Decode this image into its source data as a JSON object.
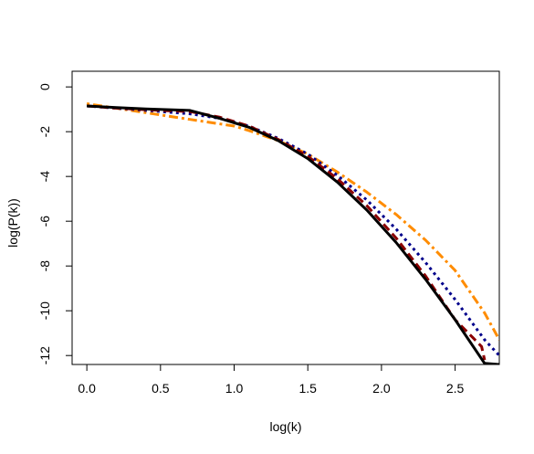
{
  "chart_data": {
    "type": "line",
    "title": "",
    "xlabel": "log(k)",
    "ylabel": "log(P(k))",
    "xlim": [
      -0.1,
      2.8
    ],
    "ylim": [
      -12.4,
      0.7
    ],
    "xticks": [
      "0.0",
      "0.5",
      "1.0",
      "1.5",
      "2.0",
      "2.5"
    ],
    "xtick_values": [
      0,
      0.5,
      1,
      1.5,
      2,
      2.5
    ],
    "yticks": [
      "0",
      "-2",
      "-4",
      "-6",
      "-8",
      "-10",
      "-12"
    ],
    "ytick_values": [
      0,
      -2,
      -4,
      -6,
      -8,
      -10,
      -12
    ],
    "grid": false,
    "legend": null,
    "series": [
      {
        "color": "#FF8C00",
        "style": "dotdash",
        "x": [
          0,
          0.1,
          0.3,
          0.5,
          0.7,
          0.8,
          1.0,
          1.1,
          1.3,
          1.5,
          1.7,
          1.9,
          2.1,
          2.3,
          2.5,
          2.7,
          2.8
        ],
        "y": [
          -0.75,
          -0.85,
          -1.05,
          -1.25,
          -1.45,
          -1.55,
          -1.75,
          -1.95,
          -2.4,
          -3.0,
          -3.8,
          -4.7,
          -5.7,
          -6.85,
          -8.2,
          -10.1,
          -11.3
        ]
      },
      {
        "color": "#00008B",
        "style": "dotted",
        "x": [
          0,
          0.2,
          0.5,
          0.7,
          0.9,
          1.1,
          1.3,
          1.5,
          1.7,
          1.9,
          2.1,
          2.3,
          2.5,
          2.7,
          2.8
        ],
        "y": [
          -0.85,
          -0.95,
          -1.1,
          -1.2,
          -1.4,
          -1.75,
          -2.3,
          -3.0,
          -3.95,
          -5.05,
          -6.35,
          -7.85,
          -9.5,
          -11.3,
          -12.0
        ]
      },
      {
        "color": "#8B0000",
        "style": "dashed",
        "x": [
          0,
          0.2,
          0.5,
          0.7,
          0.9,
          1.1,
          1.3,
          1.5,
          1.7,
          1.9,
          2.1,
          2.3,
          2.5,
          2.62,
          2.68,
          2.7
        ],
        "y": [
          -0.85,
          -0.95,
          -1.05,
          -1.1,
          -1.35,
          -1.75,
          -2.35,
          -3.1,
          -4.1,
          -5.3,
          -6.75,
          -8.45,
          -10.4,
          -11.2,
          -11.6,
          -12.2
        ]
      },
      {
        "color": "#000000",
        "style": "solid",
        "x": [
          0,
          0.2,
          0.4,
          0.7,
          0.9,
          1.1,
          1.3,
          1.5,
          1.7,
          1.9,
          2.1,
          2.3,
          2.5,
          2.7,
          2.8
        ],
        "y": [
          -0.85,
          -0.92,
          -0.98,
          -1.05,
          -1.4,
          -1.8,
          -2.4,
          -3.2,
          -4.25,
          -5.5,
          -6.95,
          -8.6,
          -10.4,
          -12.35,
          -12.4
        ]
      }
    ]
  }
}
